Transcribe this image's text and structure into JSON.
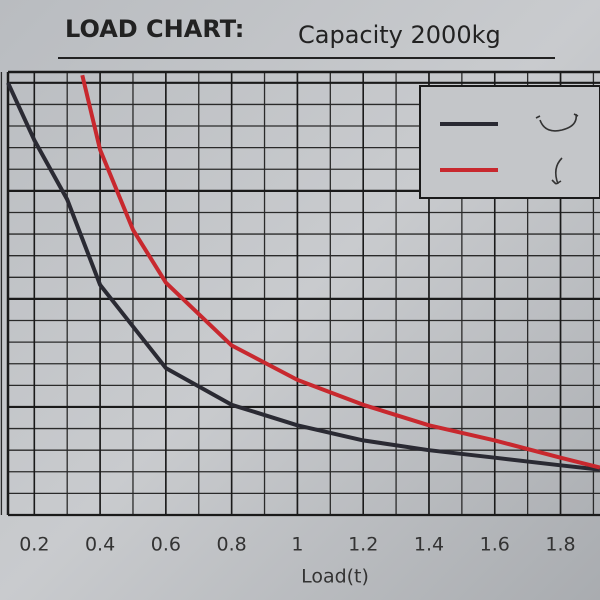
{
  "chart_data": {
    "type": "line",
    "title": "LOAD CHART:",
    "subtitle": "Capacity 2000kg",
    "x_label": "Load(t)",
    "xlim": [
      0.12,
      1.92
    ],
    "xticks": [
      0.2,
      0.4,
      0.6,
      0.8,
      1,
      1.2,
      1.4,
      1.6,
      1.8
    ],
    "ylim": [
      0,
      4.1
    ],
    "grid": true,
    "series": [
      {
        "color": "#2a2a33",
        "x": [
          0.12,
          0.2,
          0.3,
          0.4,
          0.6,
          0.8,
          1.0,
          1.2,
          1.4,
          1.6,
          1.8,
          1.92
        ],
        "values": [
          4.0,
          3.47,
          2.92,
          2.13,
          1.36,
          1.02,
          0.83,
          0.69,
          0.6,
          0.53,
          0.46,
          0.42
        ]
      },
      {
        "color": "#c8282e",
        "x": [
          0.346,
          0.4,
          0.5,
          0.6,
          0.8,
          1.0,
          1.2,
          1.4,
          1.6,
          1.8,
          1.92
        ],
        "values": [
          4.07,
          3.38,
          2.64,
          2.15,
          1.57,
          1.25,
          1.02,
          0.83,
          0.69,
          0.53,
          0.44
        ]
      }
    ]
  }
}
